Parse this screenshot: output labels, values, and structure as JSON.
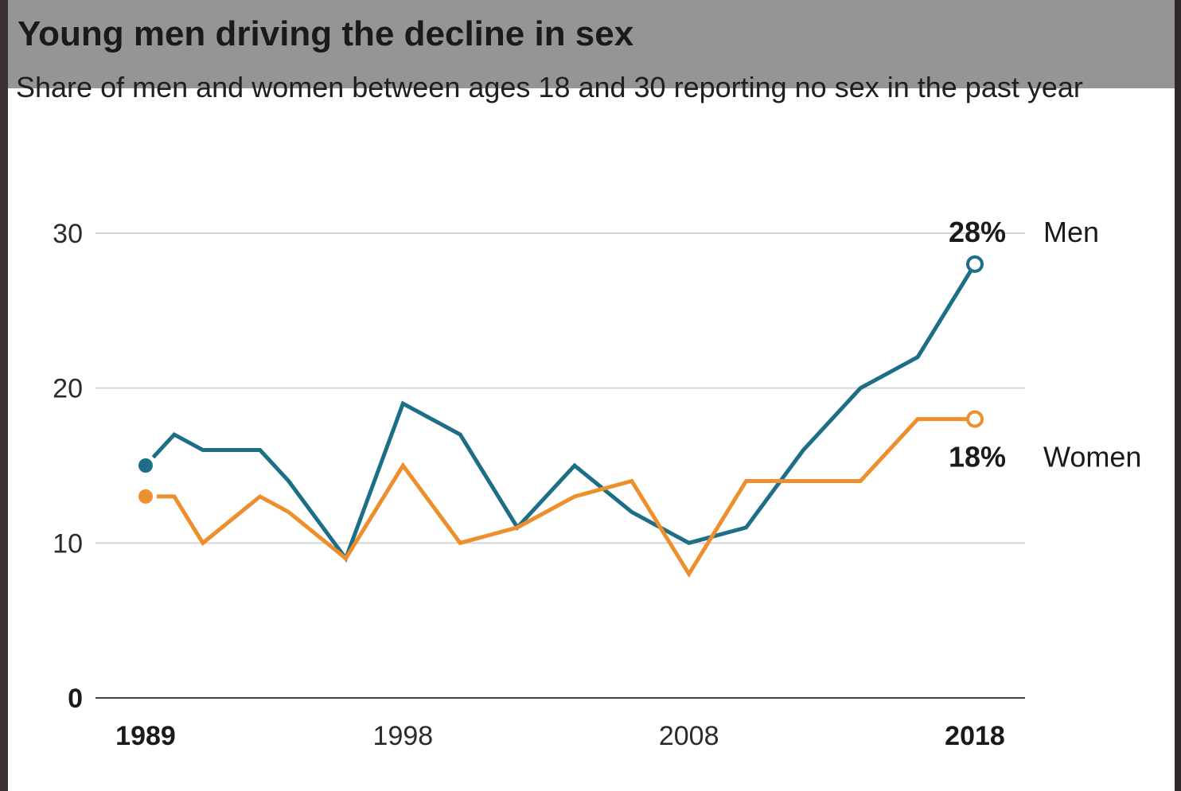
{
  "header": {
    "title": "Young men driving the decline in sex",
    "subtitle": "Share of men and women between ages 18 and 30 reporting no sex in the past year"
  },
  "chart_data": {
    "type": "line",
    "title": "Young men driving the decline in sex",
    "subtitle": "Share of men and women between ages 18 and 30 reporting no sex in the past year",
    "xlabel": "",
    "ylabel": "",
    "xlim": [
      1989,
      2018
    ],
    "ylim": [
      0,
      30
    ],
    "grid": true,
    "y_ticks": [
      {
        "value": 0,
        "label": "0",
        "bold": true
      },
      {
        "value": 10,
        "label": "10",
        "bold": false
      },
      {
        "value": 20,
        "label": "20",
        "bold": false
      },
      {
        "value": 30,
        "label": "30",
        "bold": false
      }
    ],
    "x_ticks": [
      {
        "value": 1989,
        "label": "1989",
        "bold": true
      },
      {
        "value": 1998,
        "label": "1998",
        "bold": false
      },
      {
        "value": 2008,
        "label": "2008",
        "bold": false
      },
      {
        "value": 2018,
        "label": "2018",
        "bold": true
      }
    ],
    "series": [
      {
        "name": "Men",
        "color": "#1c6f87",
        "end_label": "28%",
        "x": [
          1989,
          1990,
          1991,
          1993,
          1994,
          1996,
          1998,
          2000,
          2002,
          2004,
          2006,
          2008,
          2010,
          2012,
          2014,
          2016,
          2018
        ],
        "y": [
          15,
          17,
          16,
          16,
          14,
          9,
          19,
          17,
          11,
          15,
          12,
          10,
          11,
          16,
          20,
          22,
          28
        ]
      },
      {
        "name": "Women",
        "color": "#ee8f2e",
        "end_label": "18%",
        "x": [
          1989,
          1990,
          1991,
          1993,
          1994,
          1996,
          1998,
          2000,
          2002,
          2004,
          2006,
          2008,
          2010,
          2012,
          2014,
          2016,
          2018
        ],
        "y": [
          13,
          13,
          10,
          13,
          12,
          9,
          15,
          10,
          11,
          13,
          14,
          8,
          14,
          14,
          14,
          18,
          18
        ]
      }
    ]
  }
}
